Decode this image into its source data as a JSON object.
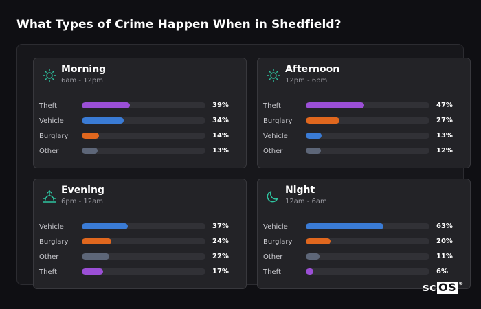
{
  "page": {
    "title": "What Types of Crime Happen When in Shedfield?"
  },
  "colors": {
    "theft": "#9b4fd6",
    "vehicle": "#3a7bd5",
    "burglary": "#e0671e",
    "other": "#5d6678",
    "icon": "#2ec4a0"
  },
  "cards": [
    {
      "title": "Morning",
      "subtitle": "6am - 12pm",
      "icon": "sun-icon",
      "rows": [
        {
          "label": "Theft",
          "value": "39%",
          "pct": 39,
          "cat": "theft"
        },
        {
          "label": "Vehicle",
          "value": "34%",
          "pct": 34,
          "cat": "vehicle"
        },
        {
          "label": "Burglary",
          "value": "14%",
          "pct": 14,
          "cat": "burglary"
        },
        {
          "label": "Other",
          "value": "13%",
          "pct": 13,
          "cat": "other"
        }
      ]
    },
    {
      "title": "Afternoon",
      "subtitle": "12pm - 6pm",
      "icon": "sun-icon",
      "rows": [
        {
          "label": "Theft",
          "value": "47%",
          "pct": 47,
          "cat": "theft"
        },
        {
          "label": "Burglary",
          "value": "27%",
          "pct": 27,
          "cat": "burglary"
        },
        {
          "label": "Vehicle",
          "value": "13%",
          "pct": 13,
          "cat": "vehicle"
        },
        {
          "label": "Other",
          "value": "12%",
          "pct": 12,
          "cat": "other"
        }
      ]
    },
    {
      "title": "Evening",
      "subtitle": "6pm - 12am",
      "icon": "sunset-icon",
      "rows": [
        {
          "label": "Vehicle",
          "value": "37%",
          "pct": 37,
          "cat": "vehicle"
        },
        {
          "label": "Burglary",
          "value": "24%",
          "pct": 24,
          "cat": "burglary"
        },
        {
          "label": "Other",
          "value": "22%",
          "pct": 22,
          "cat": "other"
        },
        {
          "label": "Theft",
          "value": "17%",
          "pct": 17,
          "cat": "theft"
        }
      ]
    },
    {
      "title": "Night",
      "subtitle": "12am - 6am",
      "icon": "moon-icon",
      "rows": [
        {
          "label": "Vehicle",
          "value": "63%",
          "pct": 63,
          "cat": "vehicle"
        },
        {
          "label": "Burglary",
          "value": "20%",
          "pct": 20,
          "cat": "burglary"
        },
        {
          "label": "Other",
          "value": "11%",
          "pct": 11,
          "cat": "other"
        },
        {
          "label": "Theft",
          "value": "6%",
          "pct": 6,
          "cat": "theft"
        }
      ]
    }
  ],
  "logo": {
    "text_a": "sc",
    "text_b": "OS",
    "mark": "®"
  }
}
